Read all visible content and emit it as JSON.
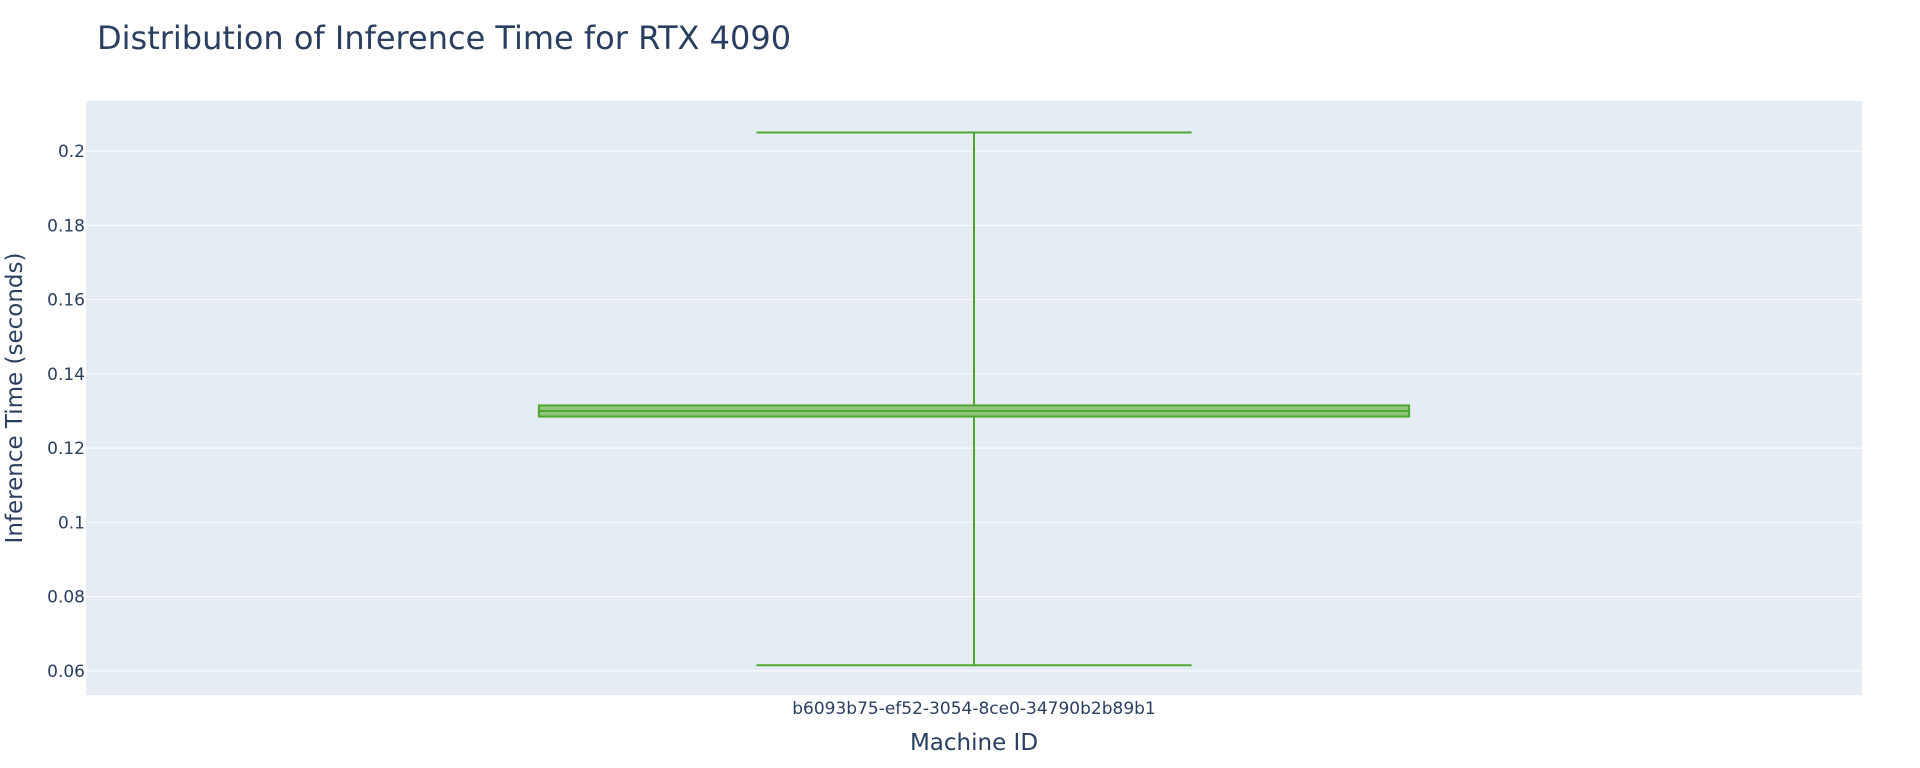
{
  "chart_data": {
    "type": "box",
    "title": "Distribution of Inference Time for RTX 4090",
    "xlabel": "Machine ID",
    "ylabel": "Inference Time (seconds)",
    "categories": [
      "b6093b75-ef52-3054-8ce0-34790b2b89b1"
    ],
    "ylim": [
      0.0535,
      0.2135
    ],
    "yticks": [
      0.06,
      0.08,
      0.1,
      0.12,
      0.14,
      0.16,
      0.18,
      0.2
    ],
    "ytick_labels": [
      "0.06",
      "0.08",
      "0.1",
      "0.12",
      "0.14",
      "0.16",
      "0.18",
      "0.2"
    ],
    "grid": true,
    "series": [
      {
        "category": "b6093b75-ef52-3054-8ce0-34790b2b89b1",
        "min": 0.0615,
        "q1": 0.1285,
        "median": 0.13,
        "q3": 0.1315,
        "max": 0.205
      }
    ],
    "colors": {
      "box_fill": "#93c47d",
      "box_line": "#4ea72e",
      "plot_bg": "#e5ecf6",
      "grid": "#ffffff",
      "text": "#2a3f5f"
    }
  }
}
